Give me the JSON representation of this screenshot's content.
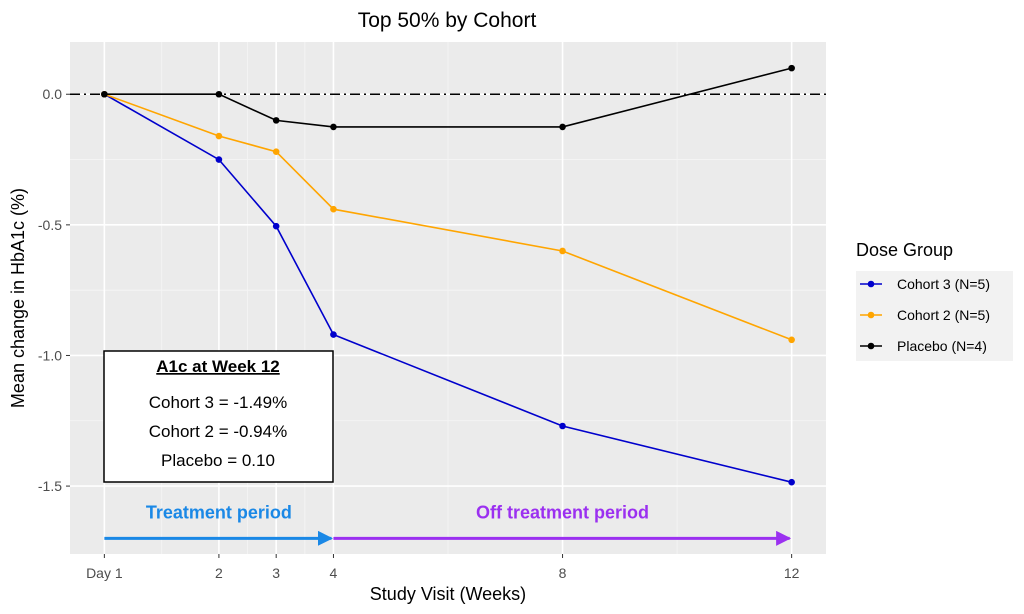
{
  "chart_data": {
    "type": "line",
    "title": "Top 50% by Cohort",
    "xlabel": "Study Visit (Weeks)",
    "ylabel": "Mean change in HbA1c (%)",
    "x": [
      0,
      2,
      3,
      4,
      8,
      12
    ],
    "x_tick_labels": [
      "Day 1",
      "2",
      "3",
      "4",
      "8",
      "12"
    ],
    "xlim": [
      -0.6,
      12.6
    ],
    "ylim": [
      -1.76,
      0.2
    ],
    "y_ticks": [
      0.0,
      -0.5,
      -1.0,
      -1.5
    ],
    "y_tick_labels": [
      "0.0",
      "-0.5",
      "-1.0",
      "-1.5"
    ],
    "grid": true,
    "reference_line": {
      "y": 0,
      "style": "dash-dot"
    },
    "legend": {
      "title": "Dose Group",
      "placement": "right"
    },
    "series": [
      {
        "name": "Cohort 3 (N=5)",
        "color": "#0000cc",
        "values": [
          0,
          -0.25,
          -0.505,
          -0.92,
          -1.27,
          -1.485
        ]
      },
      {
        "name": "Cohort 2 (N=5)",
        "color": "#ffa500",
        "values": [
          0,
          -0.16,
          -0.22,
          -0.44,
          -0.6,
          -0.94
        ]
      },
      {
        "name": "Placebo (N=4)",
        "color": "#000000",
        "values": [
          0,
          0,
          -0.1,
          -0.125,
          -0.125,
          0.1
        ]
      }
    ],
    "annotation_box": {
      "title": "A1c at Week 12",
      "lines": [
        "Cohort 3 = -1.49%",
        "Cohort 2 = -0.94%",
        "Placebo = 0.10"
      ]
    },
    "periods": [
      {
        "label": "Treatment period",
        "color": "#1a88e6",
        "x_start": 0,
        "x_end": 4,
        "y": -1.7
      },
      {
        "label": "Off treatment period",
        "color": "#9b30f0",
        "x_start": 4,
        "x_end": 12,
        "y": -1.7
      }
    ]
  }
}
